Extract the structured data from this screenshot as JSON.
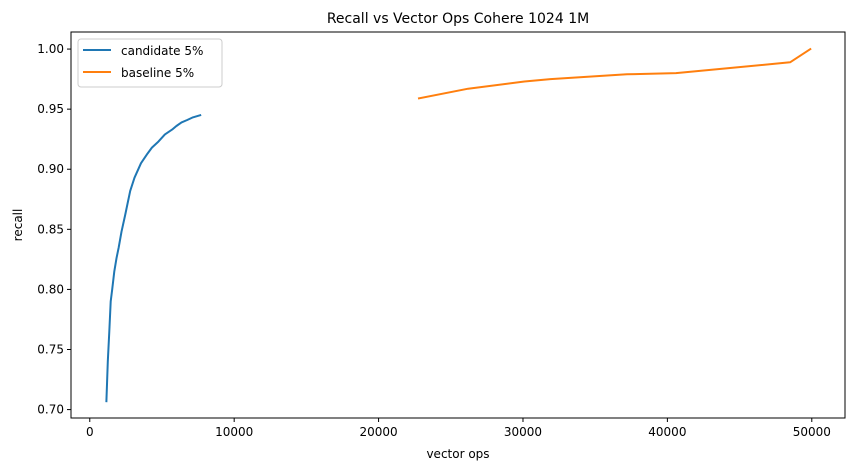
{
  "chart_data": {
    "type": "line",
    "title": "Recall vs Vector Ops Cohere 1024 1M",
    "xlabel": "vector ops",
    "ylabel": "recall",
    "xlim": [
      -1300,
      52300
    ],
    "ylim": [
      0.693,
      1.0142
    ],
    "xticks": [
      0,
      10000,
      20000,
      30000,
      40000,
      50000
    ],
    "xtick_labels": [
      "0",
      "10000",
      "20000",
      "30000",
      "40000",
      "50000"
    ],
    "yticks": [
      0.7,
      0.75,
      0.8,
      0.85,
      0.9,
      0.95,
      1.0
    ],
    "ytick_labels": [
      "0.70",
      "0.75",
      "0.80",
      "0.85",
      "0.90",
      "0.95",
      "1.00"
    ],
    "grid": false,
    "legend_position": "upper left",
    "series": [
      {
        "name": "candidate 5%",
        "color": "#1f77b4",
        "x": [
          1150,
          1250,
          1350,
          1450,
          1550,
          1700,
          1850,
          2000,
          2200,
          2450,
          2800,
          3100,
          3550,
          4000,
          4300,
          4750,
          5200,
          5700,
          6000,
          6350,
          6750,
          7100,
          7650
        ],
        "y": [
          0.707,
          0.74,
          0.765,
          0.79,
          0.8,
          0.815,
          0.826,
          0.835,
          0.848,
          0.862,
          0.882,
          0.893,
          0.905,
          0.913,
          0.918,
          0.923,
          0.929,
          0.933,
          0.936,
          0.939,
          0.941,
          0.943,
          0.945
        ]
      },
      {
        "name": "baseline 5%",
        "color": "#ff7f0e",
        "x": [
          22800,
          26200,
          30100,
          31900,
          37200,
          40600,
          48500,
          49900
        ],
        "y": [
          0.959,
          0.967,
          0.973,
          0.975,
          0.979,
          0.98,
          0.989,
          1.0
        ]
      }
    ]
  }
}
